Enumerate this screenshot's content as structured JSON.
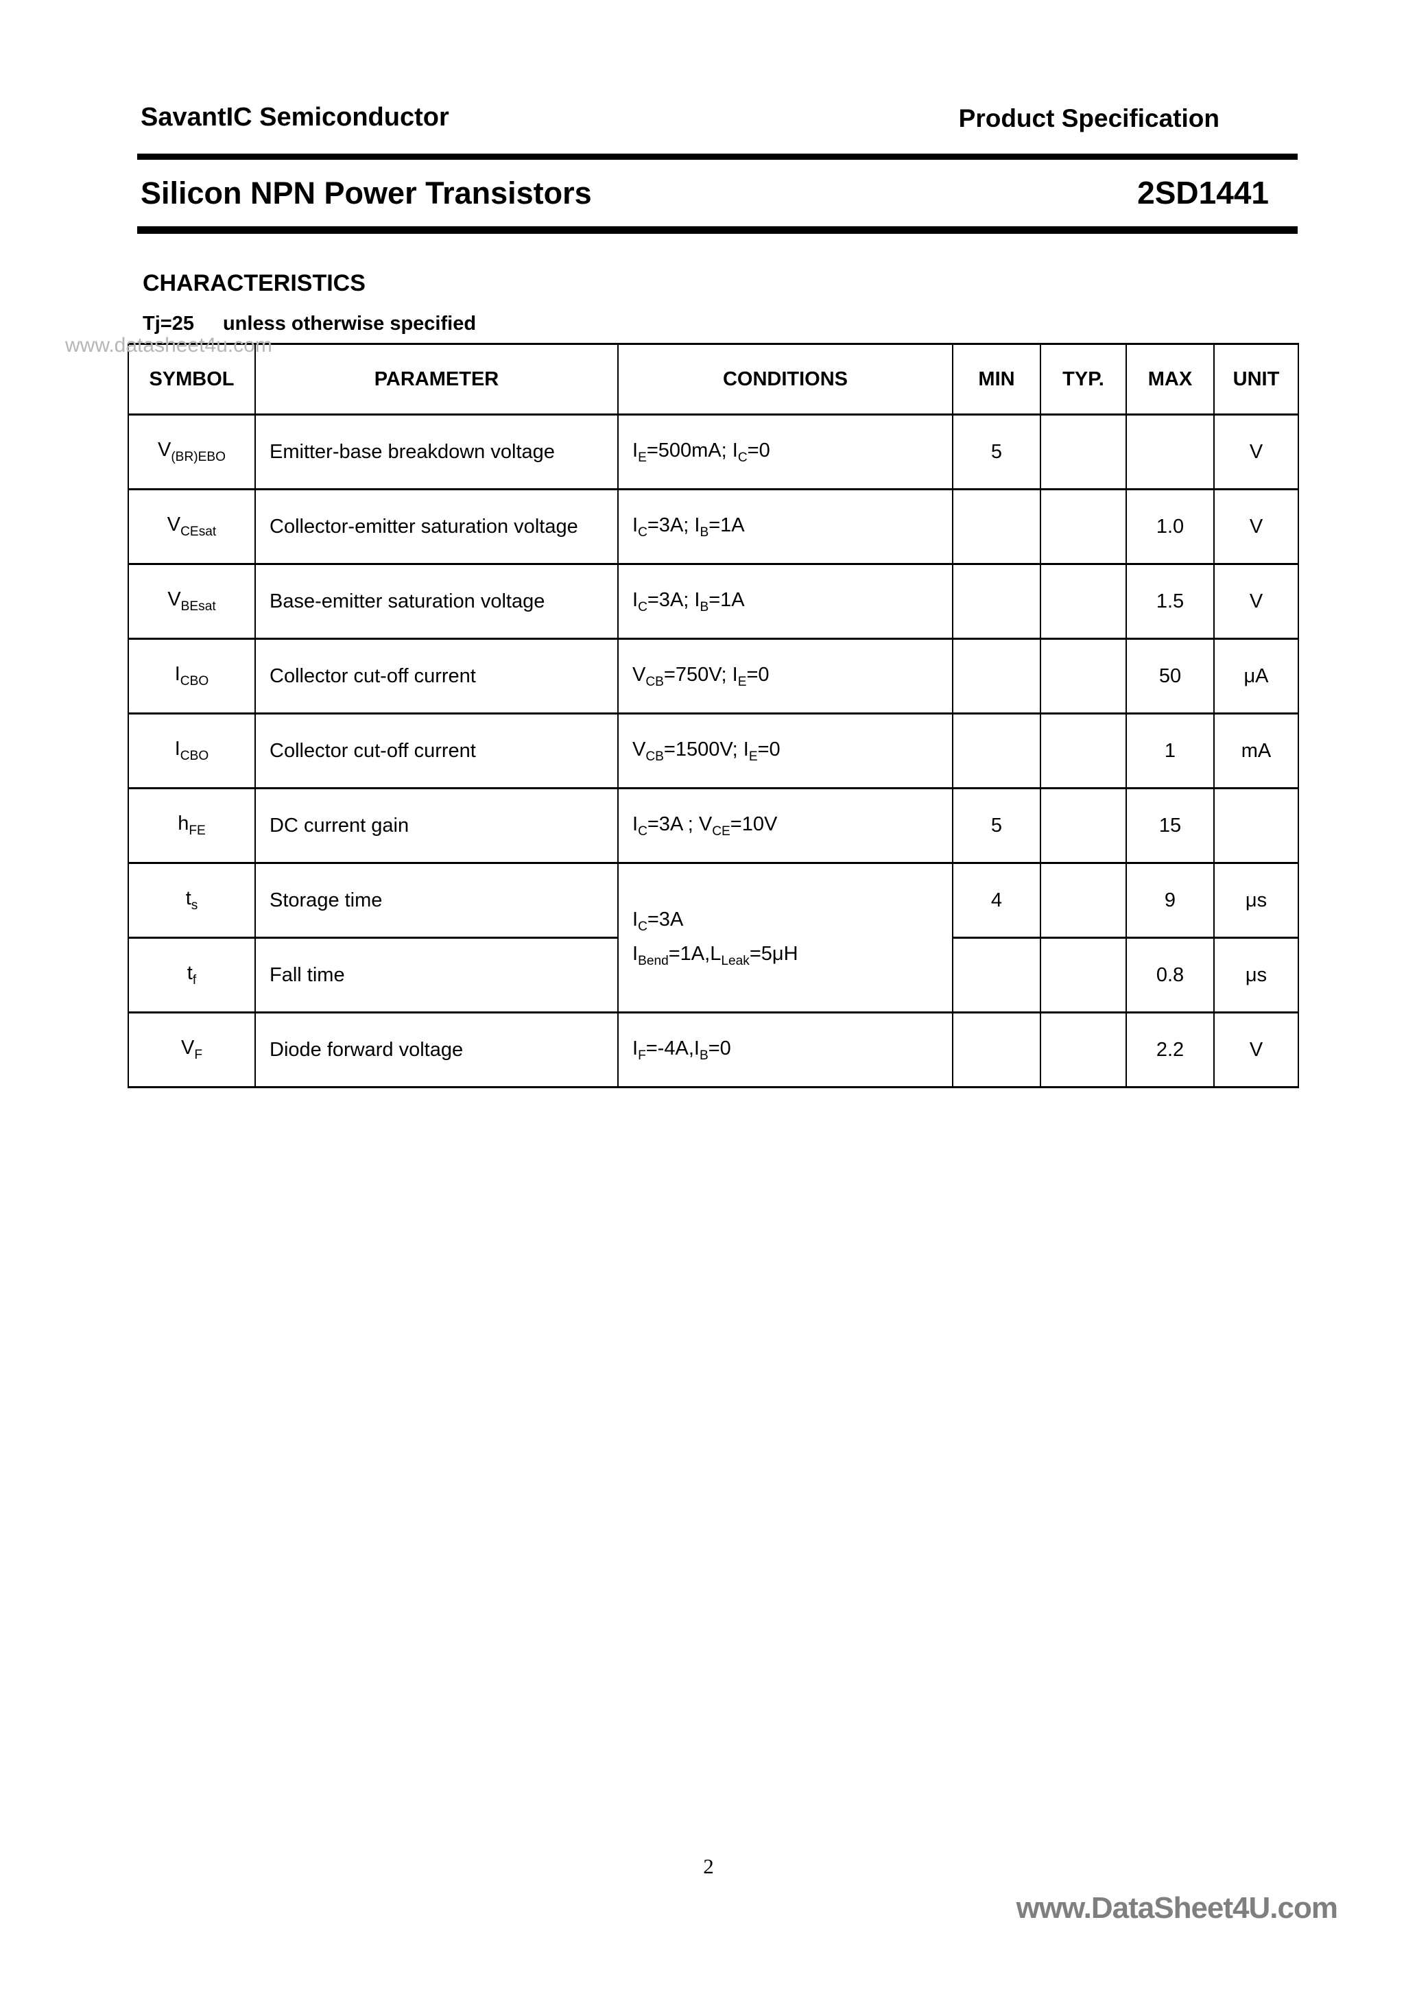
{
  "page": {
    "brand": "SavantIC Semiconductor",
    "spec": "Product Specification",
    "title": "Silicon NPN Power Transistors",
    "part_number": "2SD1441",
    "section_heading": "CHARACTERISTICS",
    "condition_temp": "Tj=25",
    "condition_note": "unless otherwise specified",
    "watermark_top": "www.datasheet4u.com",
    "watermark_footer": "www.DataSheet4U.com",
    "page_number": "2"
  },
  "colors": {
    "text": "#000000",
    "table_border": "#000000",
    "watermark_top_gray": "#b6b6b6",
    "watermark_footer_gray": "#7f7f7f"
  },
  "table": {
    "headers": [
      "SYMBOL",
      "PARAMETER",
      "CONDITIONS",
      "MIN",
      "TYP.",
      "MAX",
      "UNIT"
    ],
    "rows": [
      {
        "symbol": "V~(BR)EBO~",
        "parameter": "Emitter-base breakdown voltage",
        "conditions": "I~E~=500mA; I~C~=0",
        "min": "5",
        "typ": "",
        "max": "",
        "unit": "V"
      },
      {
        "symbol": "V~CEsat~",
        "parameter": "Collector-emitter saturation voltage",
        "conditions": "I~C~=3A; I~B~=1A",
        "min": "",
        "typ": "",
        "max": "1.0",
        "unit": "V"
      },
      {
        "symbol": "V~BEsat~",
        "parameter": "Base-emitter saturation voltage",
        "conditions": "I~C~=3A; I~B~=1A",
        "min": "",
        "typ": "",
        "max": "1.5",
        "unit": "V"
      },
      {
        "symbol": "I~CBO~",
        "parameter": "Collector cut-off current",
        "conditions": "V~CB~=750V; I~E~=0",
        "min": "",
        "typ": "",
        "max": "50",
        "unit": "μA"
      },
      {
        "symbol": "I~CBO~",
        "parameter": "Collector cut-off current",
        "conditions": "V~CB~=1500V; I~E~=0",
        "min": "",
        "typ": "",
        "max": "1",
        "unit": "mA"
      },
      {
        "symbol": "h~FE~",
        "parameter": "DC current gain",
        "conditions": "I~C~=3A ; V~CE~=10V",
        "min": "5",
        "typ": "",
        "max": "15",
        "unit": ""
      },
      {
        "symbol": "t~s~",
        "parameter": "Storage time",
        "conditions": [
          "I~C~=3A",
          "I~Bend~=1A,L~Leak~=5μH"
        ],
        "conditions_rowspan": 2,
        "min": "4",
        "typ": "",
        "max": "9",
        "unit": "μs"
      },
      {
        "symbol": "t~f~",
        "parameter": "Fall time",
        "conditions_merged_above": true,
        "min": "",
        "typ": "",
        "max": "0.8",
        "unit": "μs"
      },
      {
        "symbol": "V~F~",
        "parameter": "Diode forward voltage",
        "conditions": "I~F~=-4A,I~B~=0",
        "min": "",
        "typ": "",
        "max": "2.2",
        "unit": "V"
      }
    ]
  }
}
